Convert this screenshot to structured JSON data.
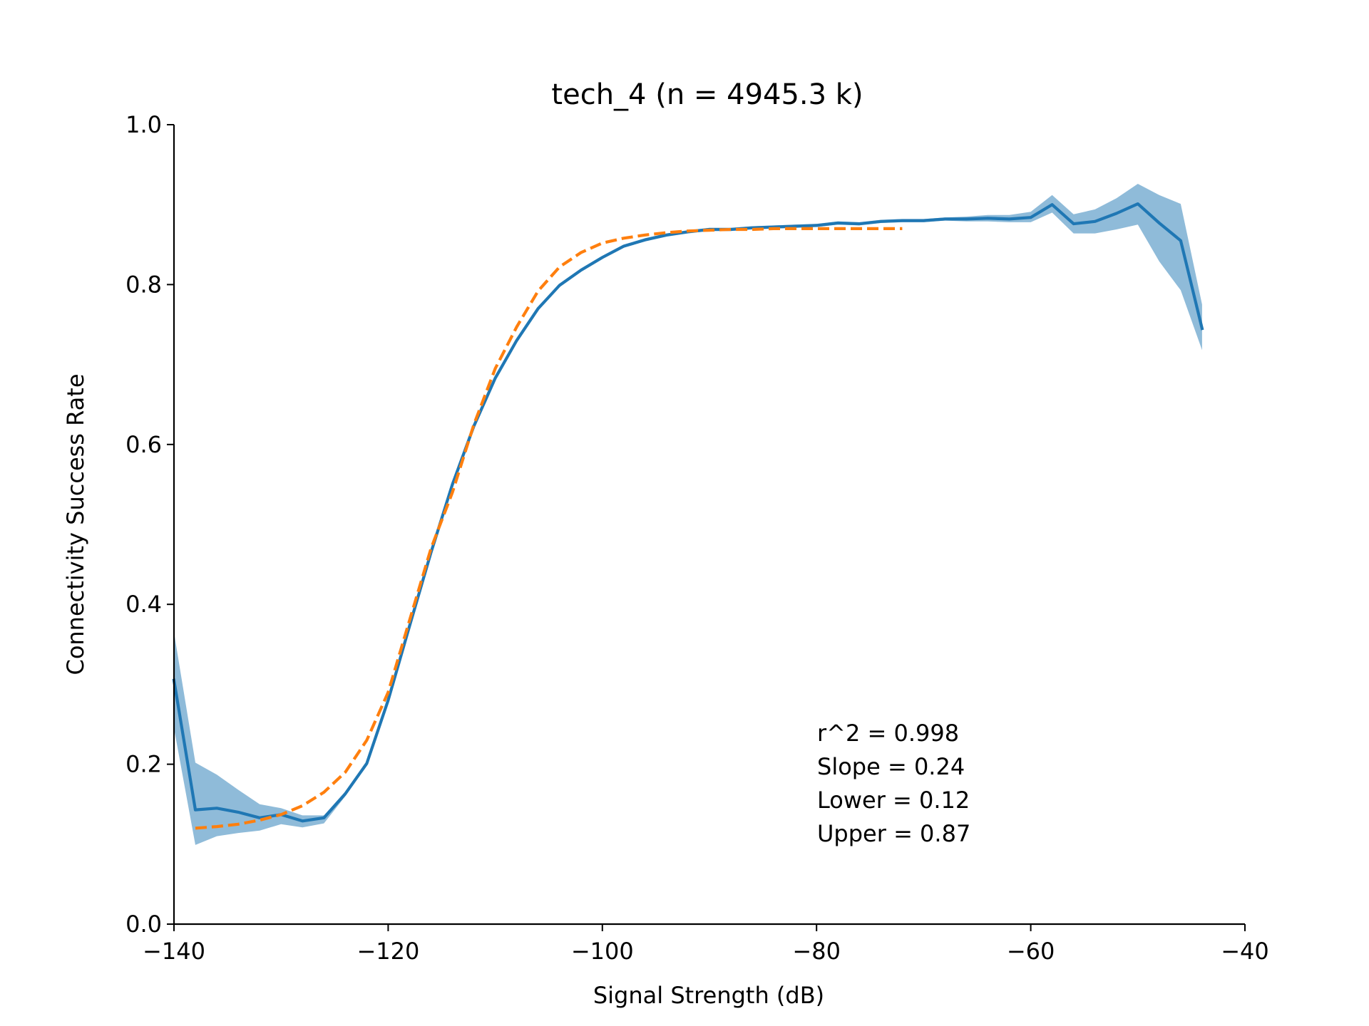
{
  "chart_data": {
    "type": "line",
    "title": "tech_4 (n = 4945.3 k)",
    "xlabel": "Signal Strength (dB)",
    "ylabel": "Connectivity Success Rate",
    "xlim": [
      -140,
      -40
    ],
    "ylim": [
      0.0,
      1.0
    ],
    "xticks": [
      -140,
      -120,
      -100,
      -80,
      -60,
      -40
    ],
    "xtick_labels": [
      "−140",
      "−120",
      "−100",
      "−80",
      "−60",
      "−40"
    ],
    "yticks": [
      0.0,
      0.2,
      0.4,
      0.6,
      0.8,
      1.0
    ],
    "ytick_labels": [
      "0.0",
      "0.2",
      "0.4",
      "0.6",
      "0.8",
      "1.0"
    ],
    "grid": false,
    "colors": {
      "observed": "#1f77b4",
      "band": "#1f77b4",
      "fit": "#ff7f0e"
    },
    "series": [
      {
        "style": "solid",
        "x": [
          -140,
          -138,
          -136,
          -134,
          -132,
          -130,
          -128,
          -126,
          -124,
          -122,
          -120,
          -118,
          -116,
          -114,
          -112,
          -110,
          -108,
          -106,
          -104,
          -102,
          -100,
          -98,
          -96,
          -94,
          -92,
          -90,
          -88,
          -86,
          -84,
          -82,
          -80,
          -78,
          -76,
          -74,
          -72,
          -70,
          -68,
          -66,
          -64,
          -62,
          -60,
          -58,
          -56,
          -54,
          -52,
          -50,
          -48,
          -46,
          -44
        ],
        "y": [
          0.305,
          0.143,
          0.145,
          0.14,
          0.133,
          0.137,
          0.129,
          0.133,
          0.163,
          0.201,
          0.28,
          0.373,
          0.465,
          0.55,
          0.623,
          0.683,
          0.73,
          0.77,
          0.799,
          0.818,
          0.834,
          0.848,
          0.856,
          0.862,
          0.866,
          0.869,
          0.869,
          0.871,
          0.872,
          0.873,
          0.874,
          0.877,
          0.876,
          0.879,
          0.88,
          0.88,
          0.882,
          0.882,
          0.883,
          0.882,
          0.884,
          0.9,
          0.876,
          0.879,
          0.889,
          0.901,
          0.877,
          0.855,
          0.745
        ]
      },
      {
        "style": "dashed",
        "x": [
          -138,
          -136,
          -134,
          -132,
          -130,
          -128,
          -126,
          -124,
          -122,
          -120,
          -118,
          -116,
          -114,
          -112,
          -110,
          -108,
          -106,
          -104,
          -102,
          -100,
          -98,
          -96,
          -94,
          -92,
          -90,
          -88,
          -86,
          -84,
          -82,
          -80,
          -78,
          -76,
          -74,
          -72
        ],
        "y": [
          0.12,
          0.122,
          0.125,
          0.13,
          0.137,
          0.148,
          0.165,
          0.19,
          0.23,
          0.29,
          0.38,
          0.47,
          0.54,
          0.625,
          0.695,
          0.747,
          0.792,
          0.822,
          0.84,
          0.852,
          0.858,
          0.862,
          0.865,
          0.867,
          0.868,
          0.869,
          0.869,
          0.87,
          0.87,
          0.87,
          0.87,
          0.87,
          0.87,
          0.87
        ]
      }
    ],
    "band": {
      "x": [
        -140,
        -138,
        -136,
        -134,
        -132,
        -130,
        -128,
        -126,
        -124,
        -122,
        -120,
        -118,
        -116,
        -114,
        -112,
        -110,
        -108,
        -106,
        -104,
        -102,
        -100,
        -98,
        -96,
        -94,
        -92,
        -90,
        -88,
        -86,
        -84,
        -82,
        -80,
        -78,
        -76,
        -74,
        -72,
        -70,
        -68,
        -66,
        -64,
        -62,
        -60,
        -58,
        -56,
        -54,
        -52,
        -50,
        -48,
        -46,
        -44
      ],
      "upper": [
        0.365,
        0.202,
        0.187,
        0.168,
        0.15,
        0.145,
        0.136,
        0.136,
        0.166,
        0.203,
        0.282,
        0.375,
        0.467,
        0.552,
        0.625,
        0.685,
        0.732,
        0.772,
        0.801,
        0.82,
        0.836,
        0.85,
        0.858,
        0.864,
        0.868,
        0.871,
        0.871,
        0.873,
        0.874,
        0.875,
        0.876,
        0.879,
        0.878,
        0.881,
        0.882,
        0.882,
        0.884,
        0.885,
        0.887,
        0.887,
        0.891,
        0.912,
        0.888,
        0.894,
        0.908,
        0.926,
        0.912,
        0.901,
        0.775
      ],
      "lower": [
        0.245,
        0.099,
        0.11,
        0.114,
        0.117,
        0.125,
        0.121,
        0.126,
        0.16,
        0.199,
        0.278,
        0.371,
        0.463,
        0.548,
        0.621,
        0.681,
        0.728,
        0.768,
        0.797,
        0.816,
        0.832,
        0.846,
        0.854,
        0.86,
        0.864,
        0.867,
        0.867,
        0.869,
        0.87,
        0.871,
        0.872,
        0.875,
        0.874,
        0.877,
        0.878,
        0.878,
        0.88,
        0.879,
        0.879,
        0.878,
        0.878,
        0.89,
        0.864,
        0.864,
        0.869,
        0.875,
        0.829,
        0.793,
        0.718
      ]
    },
    "annotations": [
      {
        "text": "r^2 = 0.998"
      },
      {
        "text": "Slope = 0.24"
      },
      {
        "text": "Lower = 0.12"
      },
      {
        "text": "Upper = 0.87"
      }
    ]
  }
}
